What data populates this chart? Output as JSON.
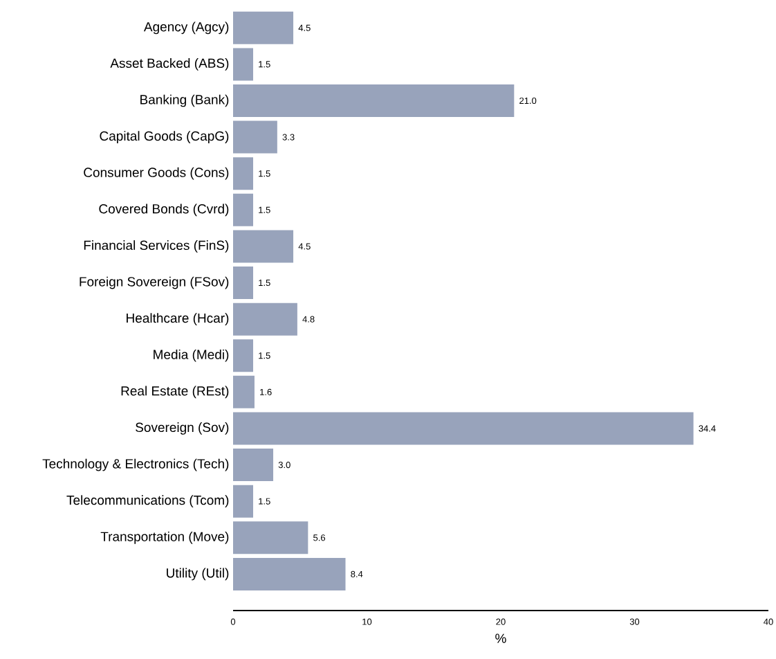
{
  "chart_data": {
    "type": "bar",
    "orientation": "horizontal",
    "xlabel": "%",
    "categories": [
      "Agency (Agcy)",
      "Asset Backed (ABS)",
      "Banking (Bank)",
      "Capital Goods (CapG)",
      "Consumer Goods (Cons)",
      "Covered Bonds (Cvrd)",
      "Financial Services (FinS)",
      "Foreign Sovereign (FSov)",
      "Healthcare (Hcar)",
      "Media (Medi)",
      "Real Estate (REst)",
      "Sovereign (Sov)",
      "Technology & Electronics (Tech)",
      "Telecommunications (Tcom)",
      "Transportation (Move)",
      "Utility (Util)"
    ],
    "values": [
      4.5,
      1.5,
      21.0,
      3.3,
      1.5,
      1.5,
      4.5,
      1.5,
      4.8,
      1.5,
      1.6,
      34.4,
      3.0,
      1.5,
      5.6,
      8.4
    ],
    "value_labels": [
      "4.5",
      "1.5",
      "21.0",
      "3.3",
      "1.5",
      "1.5",
      "4.5",
      "1.5",
      "4.8",
      "1.5",
      "1.6",
      "34.4",
      "3.0",
      "1.5",
      "5.6",
      "8.4"
    ],
    "color": "#98a3bb",
    "xlim": [
      0,
      40
    ],
    "xticks": [
      0,
      10,
      20,
      30,
      40
    ]
  }
}
